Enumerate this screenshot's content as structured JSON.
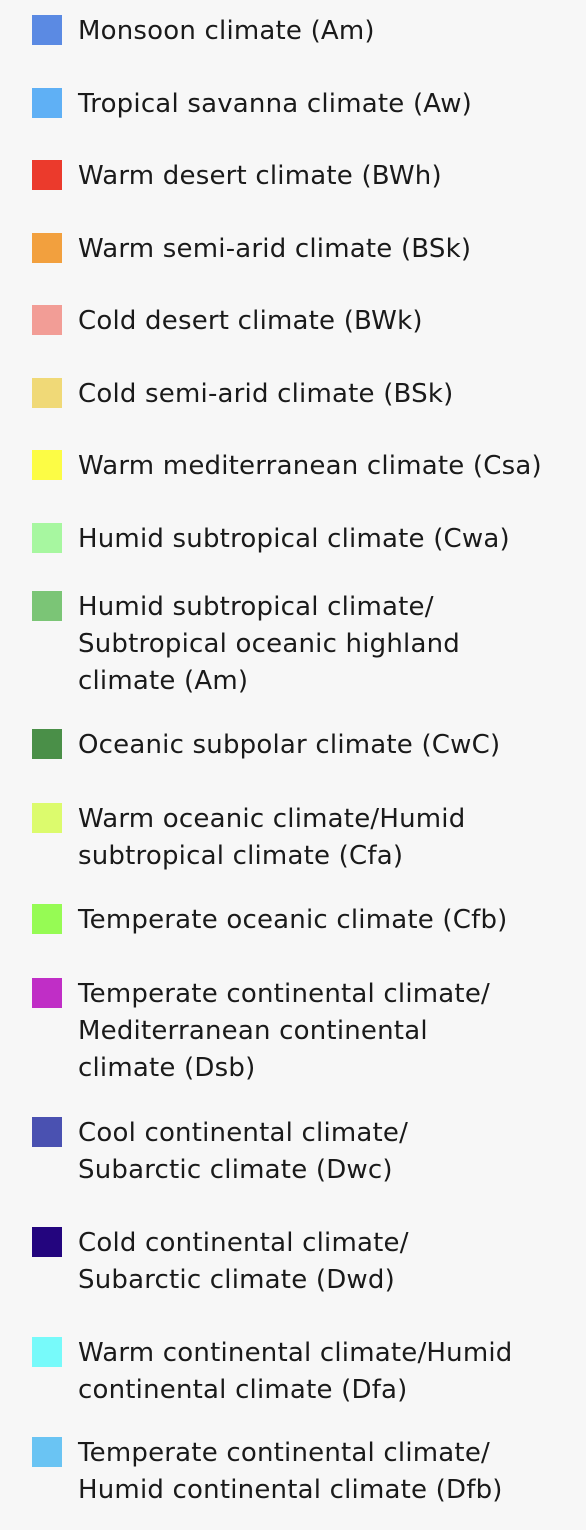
{
  "legend": {
    "items": [
      {
        "color": "#5b8ae3",
        "lines": [
          "Monsoon climate (Am)"
        ]
      },
      {
        "color": "#5fb0f5",
        "lines": [
          "Tropical savanna climate (Aw)"
        ]
      },
      {
        "color": "#eb3a2c",
        "lines": [
          "Warm desert climate (BWh)"
        ]
      },
      {
        "color": "#f2a03e",
        "lines": [
          "Warm semi-arid climate (BSk)"
        ]
      },
      {
        "color": "#f29d96",
        "lines": [
          "Cold desert climate (BWk)"
        ]
      },
      {
        "color": "#f0d977",
        "lines": [
          "Cold semi-arid climate (BSk)"
        ]
      },
      {
        "color": "#fcfc45",
        "lines": [
          "Warm mediterranean climate (Csa)"
        ]
      },
      {
        "color": "#a7f7a0",
        "lines": [
          "Humid subtropical climate (Cwa)"
        ]
      },
      {
        "color": "#7bc576",
        "lines": [
          "Humid subtropical climate/",
          "Subtropical oceanic highland",
          "climate (Am)"
        ]
      },
      {
        "color": "#4a8f48",
        "lines": [
          "Oceanic subpolar climate (CwC)"
        ]
      },
      {
        "color": "#dcfb6d",
        "lines": [
          "Warm oceanic climate/Humid",
          "subtropical climate (Cfa)"
        ]
      },
      {
        "color": "#96fb54",
        "lines": [
          "Temperate oceanic climate (Cfb)"
        ]
      },
      {
        "color": "#c02ec6",
        "lines": [
          "Temperate continental climate/",
          "Mediterranean continental",
          "climate (Dsb)"
        ]
      },
      {
        "color": "#4a51b1",
        "lines": [
          "Cool continental climate/",
          "Subarctic climate (Dwc)"
        ]
      },
      {
        "color": "#23057e",
        "lines": [
          "Cold continental climate/",
          "Subarctic climate (Dwd)"
        ]
      },
      {
        "color": "#77fafa",
        "lines": [
          "Warm continental climate/Humid",
          "continental climate (Dfa)"
        ]
      },
      {
        "color": "#6ac4f3",
        "lines": [
          "Temperate continental climate/",
          "Humid continental climate (Dfb)"
        ]
      }
    ]
  }
}
